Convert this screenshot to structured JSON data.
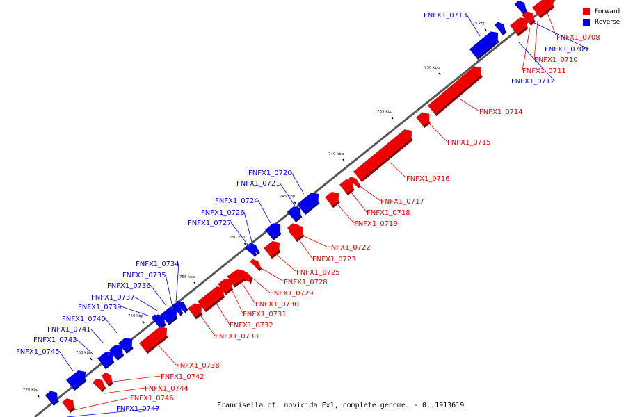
{
  "colors": {
    "forward": "#ee0000",
    "reverse": "#0000ee",
    "backbone": "#555555"
  },
  "legend": {
    "forward_label": "Forward",
    "reverse_label": "Reverse"
  },
  "caption": "Francisella cf. novicida Fx1, complete genome. - 0..1913619",
  "axis_ticks": [
    "725 kbp",
    "730 kbp",
    "735 kbp",
    "740 kbp",
    "745 kbp",
    "750 kbp",
    "755 kbp",
    "760 kbp",
    "765 kbp",
    "770 kbp"
  ],
  "genes": [
    {
      "id": "FNFX1_0708",
      "strand": "forward"
    },
    {
      "id": "FNFX1_0709",
      "strand": "reverse"
    },
    {
      "id": "FNFX1_0710",
      "strand": "forward"
    },
    {
      "id": "FNFX1_0711",
      "strand": "forward"
    },
    {
      "id": "FNFX1_0712",
      "strand": "reverse"
    },
    {
      "id": "FNFX1_0713",
      "strand": "reverse"
    },
    {
      "id": "FNFX1_0714",
      "strand": "forward"
    },
    {
      "id": "FNFX1_0715",
      "strand": "forward"
    },
    {
      "id": "FNFX1_0716",
      "strand": "forward"
    },
    {
      "id": "FNFX1_0717",
      "strand": "forward"
    },
    {
      "id": "FNFX1_0718",
      "strand": "forward"
    },
    {
      "id": "FNFX1_0719",
      "strand": "forward"
    },
    {
      "id": "FNFX1_0720",
      "strand": "reverse"
    },
    {
      "id": "FNFX1_0721",
      "strand": "reverse"
    },
    {
      "id": "FNFX1_0722",
      "strand": "forward"
    },
    {
      "id": "FNFX1_0723",
      "strand": "forward"
    },
    {
      "id": "FNFX1_0724",
      "strand": "reverse"
    },
    {
      "id": "FNFX1_0725",
      "strand": "forward"
    },
    {
      "id": "FNFX1_0726",
      "strand": "reverse"
    },
    {
      "id": "FNFX1_0727",
      "strand": "reverse"
    },
    {
      "id": "FNFX1_0728",
      "strand": "forward"
    },
    {
      "id": "FNFX1_0729",
      "strand": "forward"
    },
    {
      "id": "FNFX1_0730",
      "strand": "forward"
    },
    {
      "id": "FNFX1_0731",
      "strand": "forward"
    },
    {
      "id": "FNFX1_0732",
      "strand": "forward"
    },
    {
      "id": "FNFX1_0733",
      "strand": "forward"
    },
    {
      "id": "FNFX1_0734",
      "strand": "reverse"
    },
    {
      "id": "FNFX1_0735",
      "strand": "reverse"
    },
    {
      "id": "FNFX1_0736",
      "strand": "reverse"
    },
    {
      "id": "FNFX1_0737",
      "strand": "reverse"
    },
    {
      "id": "FNFX1_0738",
      "strand": "forward"
    },
    {
      "id": "FNFX1_0739",
      "strand": "reverse"
    },
    {
      "id": "FNFX1_0740",
      "strand": "reverse"
    },
    {
      "id": "FNFX1_0741",
      "strand": "reverse"
    },
    {
      "id": "FNFX1_0742",
      "strand": "forward"
    },
    {
      "id": "FNFX1_0743",
      "strand": "reverse"
    },
    {
      "id": "FNFX1_0744",
      "strand": "forward"
    },
    {
      "id": "FNFX1_0745",
      "strand": "reverse"
    },
    {
      "id": "FNFX1_0746",
      "strand": "forward"
    },
    {
      "id": "FNFX1_0747",
      "strand": "reverse"
    }
  ]
}
